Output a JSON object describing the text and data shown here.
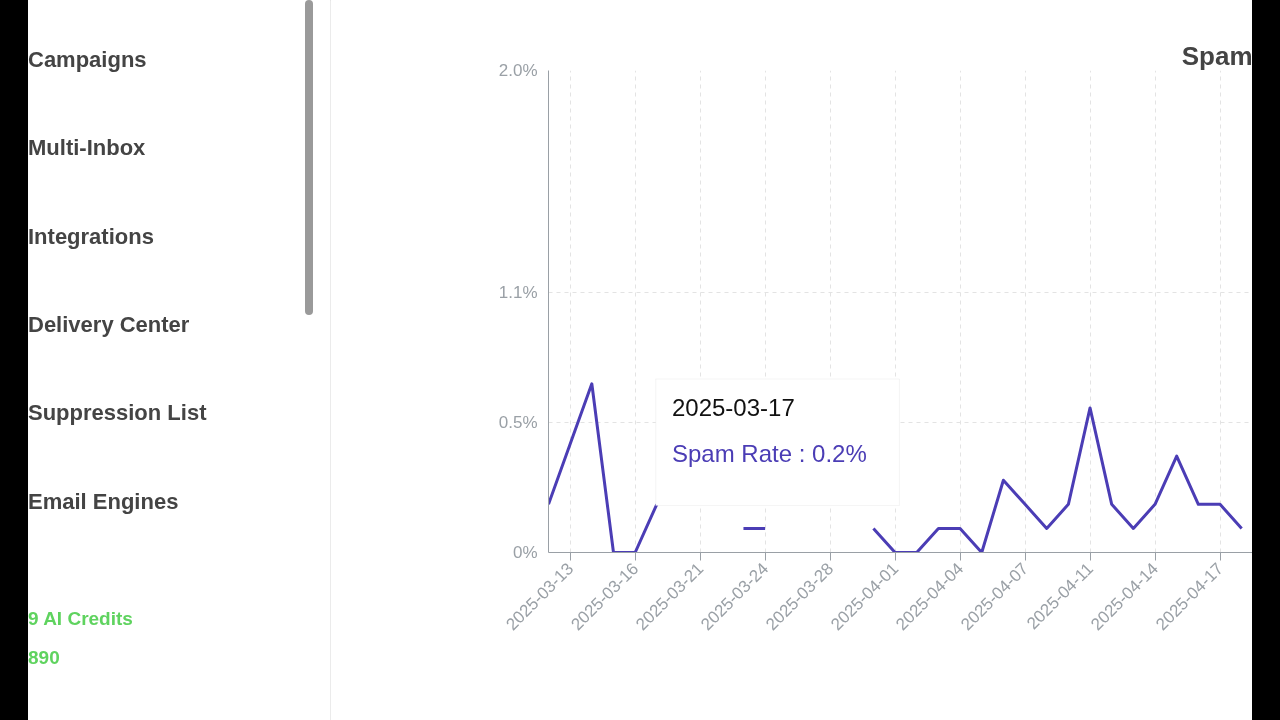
{
  "chart_data": {
    "type": "line",
    "title": "Spam",
    "categories": [
      null,
      "2025-03-13",
      null,
      null,
      "2025-03-16",
      null,
      null,
      "2025-03-21",
      null,
      null,
      "2025-03-24",
      null,
      null,
      "2025-03-28",
      null,
      null,
      "2025-04-01",
      null,
      null,
      "2025-04-04",
      null,
      null,
      "2025-04-07",
      null,
      null,
      "2025-04-11",
      null,
      null,
      "2025-04-14",
      null,
      null,
      "2025-04-17",
      null
    ],
    "series": [
      {
        "color": "#4b3db5",
        "values": [
          0.2,
          0.45,
          0.7,
          0,
          0,
          0.2,
          null,
          null,
          null,
          0.1,
          0.1,
          null,
          null,
          null,
          null,
          0.1,
          0,
          0,
          0.1,
          0.1,
          0,
          0.3,
          0.2,
          0.1,
          0.2,
          0.6,
          0.2,
          0.1,
          0.2,
          0.4,
          0.2,
          0.2,
          0.1
        ]
      }
    ],
    "ylim": [
      0,
      2.0
    ],
    "yticks": [
      {
        "value": 0,
        "label": "0%"
      },
      {
        "value": 0.54,
        "label": "0.5%"
      },
      {
        "value": 1.08,
        "label": "1.1%"
      },
      {
        "value": 2.0,
        "label": "2.0%"
      }
    ],
    "grid": true,
    "marker": "none",
    "line_style": "solid",
    "annotations": [
      "Campaigns",
      "Multi-Inbox",
      "Integrations",
      "Delivery Center",
      "Suppression List",
      "Email Engines",
      "9 AI Credits",
      "890",
      "2025-03-17",
      "Spam Rate : 0.2%"
    ]
  }
}
